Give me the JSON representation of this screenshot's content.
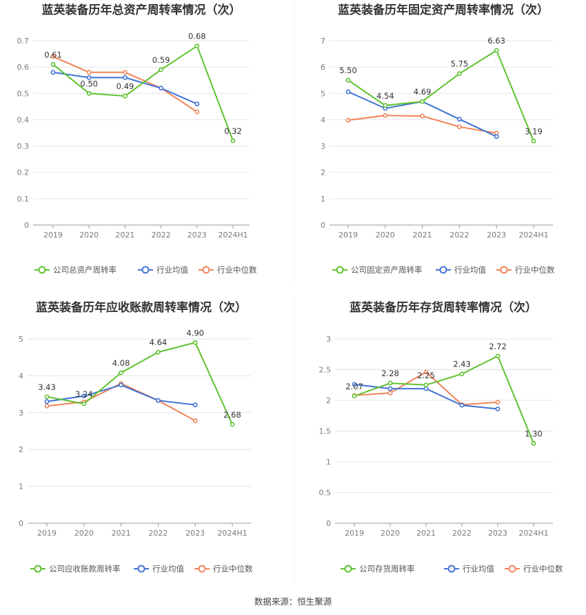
{
  "colors": {
    "company": "#5ec22f",
    "avg": "#3f72d6",
    "median": "#f0845a",
    "grid": "#e3e3e3",
    "axis": "#9a9a9a",
    "divider": "#eeeeee"
  },
  "legend": {
    "avg": "行业均值",
    "median": "行业中位数"
  },
  "source": "数据来源：恒生聚源",
  "chart_data": [
    {
      "type": "line",
      "title": "蓝英装备历年总资产周转率情况（次）",
      "categories": [
        "2019",
        "2020",
        "2021",
        "2022",
        "2023",
        "2024H1"
      ],
      "yticks": [
        "0",
        "0.1",
        "0.2",
        "0.3",
        "0.4",
        "0.5",
        "0.6",
        "0.7"
      ],
      "ylim": [
        0,
        0.7
      ],
      "series": [
        {
          "name": "公司总资产周转率",
          "key": "company",
          "values": [
            0.61,
            0.5,
            0.49,
            0.59,
            0.68,
            0.32
          ],
          "labels": [
            "0.61",
            "0.50",
            "0.49",
            "0.59",
            "0.68",
            "0.32"
          ]
        },
        {
          "name": "行业均值",
          "key": "avg",
          "values": [
            0.58,
            0.56,
            0.56,
            0.52,
            0.46,
            null
          ]
        },
        {
          "name": "行业中位数",
          "key": "median",
          "values": [
            0.64,
            0.58,
            0.58,
            0.52,
            0.43,
            null
          ]
        }
      ]
    },
    {
      "type": "line",
      "title": "蓝英装备历年固定资产周转率情况（次）",
      "categories": [
        "2019",
        "2020",
        "2021",
        "2022",
        "2023",
        "2024H1"
      ],
      "yticks": [
        "0",
        "1",
        "2",
        "3",
        "4",
        "5",
        "6",
        "7"
      ],
      "ylim": [
        0,
        7
      ],
      "series": [
        {
          "name": "公司固定资产周转率",
          "key": "company",
          "values": [
            5.5,
            4.54,
            4.69,
            5.75,
            6.63,
            3.19
          ],
          "labels": [
            "5.50",
            "4.54",
            "4.69",
            "5.75",
            "6.63",
            "3.19"
          ]
        },
        {
          "name": "行业均值",
          "key": "avg",
          "values": [
            5.06,
            4.43,
            4.69,
            4.02,
            3.36,
            null
          ]
        },
        {
          "name": "行业中位数",
          "key": "median",
          "values": [
            3.98,
            4.16,
            4.14,
            3.73,
            3.49,
            null
          ]
        }
      ]
    },
    {
      "type": "line",
      "title": "蓝英装备历年应收账款周转率情况（次）",
      "categories": [
        "2019",
        "2020",
        "2021",
        "2022",
        "2023",
        "2024H1"
      ],
      "yticks": [
        "0",
        "1",
        "2",
        "3",
        "4",
        "5"
      ],
      "ylim": [
        0,
        5
      ],
      "series": [
        {
          "name": "公司应收账款周转率",
          "key": "company",
          "values": [
            3.43,
            3.24,
            4.08,
            4.64,
            4.9,
            2.68
          ],
          "labels": [
            "3.43",
            "3.24",
            "4.08",
            "4.64",
            "4.90",
            "2.68"
          ]
        },
        {
          "name": "行业均值",
          "key": "avg",
          "values": [
            3.3,
            3.45,
            3.75,
            3.33,
            3.21,
            null
          ]
        },
        {
          "name": "行业中位数",
          "key": "median",
          "values": [
            3.18,
            3.29,
            3.79,
            3.33,
            2.78,
            null
          ]
        }
      ]
    },
    {
      "type": "line",
      "title": "蓝英装备历年存货周转率情况（次）",
      "categories": [
        "2019",
        "2020",
        "2021",
        "2022",
        "2023",
        "2024H1"
      ],
      "yticks": [
        "0",
        "0.5",
        "1",
        "1.5",
        "2",
        "2.5",
        "3"
      ],
      "ylim": [
        0,
        3
      ],
      "series": [
        {
          "name": "公司存货周转率",
          "key": "company",
          "values": [
            2.07,
            2.28,
            2.25,
            2.43,
            2.72,
            1.3
          ],
          "labels": [
            "2.07",
            "2.28",
            "2.25",
            "2.43",
            "2.72",
            "1.30"
          ]
        },
        {
          "name": "行业均值",
          "key": "avg",
          "values": [
            2.26,
            2.19,
            2.19,
            1.92,
            1.86,
            null
          ]
        },
        {
          "name": "行业中位数",
          "key": "median",
          "values": [
            2.08,
            2.12,
            2.46,
            1.93,
            1.97,
            null
          ]
        }
      ]
    }
  ]
}
